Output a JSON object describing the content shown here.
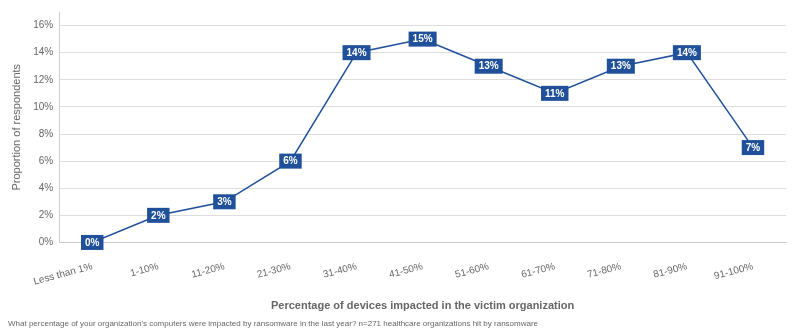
{
  "chart_data": {
    "type": "line",
    "categories": [
      "Less than 1%",
      "1-10%",
      "11-20%",
      "21-30%",
      "31-40%",
      "41-50%",
      "51-60%",
      "61-70%",
      "71-80%",
      "81-90%",
      "91-100%"
    ],
    "values": [
      0,
      2,
      3,
      6,
      14,
      15,
      13,
      11,
      13,
      14,
      7
    ],
    "value_labels": [
      "0%",
      "2%",
      "3%",
      "6%",
      "14%",
      "15%",
      "13%",
      "11%",
      "13%",
      "14%",
      "7%"
    ],
    "data_labels": true,
    "color": "#1F5099",
    "marker": "square",
    "ylabel": "Proportion of respondents",
    "xlabel": "Percentage of devices impacted in the victim organization",
    "annotations": [
      "What percentage of your organization's computers were impacted by ransomware in the last year? n=271 healthcare organizations hit by ransomware"
    ],
    "ylim": [
      0,
      17
    ],
    "yticks": [
      {
        "value": 0,
        "label": "0%"
      },
      {
        "value": 2,
        "label": "2%"
      },
      {
        "value": 4,
        "label": "4%"
      },
      {
        "value": 6,
        "label": "6%"
      },
      {
        "value": 8,
        "label": "8%"
      },
      {
        "value": 10,
        "label": "10%"
      },
      {
        "value": 12,
        "label": "12%"
      },
      {
        "value": 14,
        "label": "14%"
      },
      {
        "value": 16,
        "label": "16%"
      }
    ],
    "grid": true
  }
}
